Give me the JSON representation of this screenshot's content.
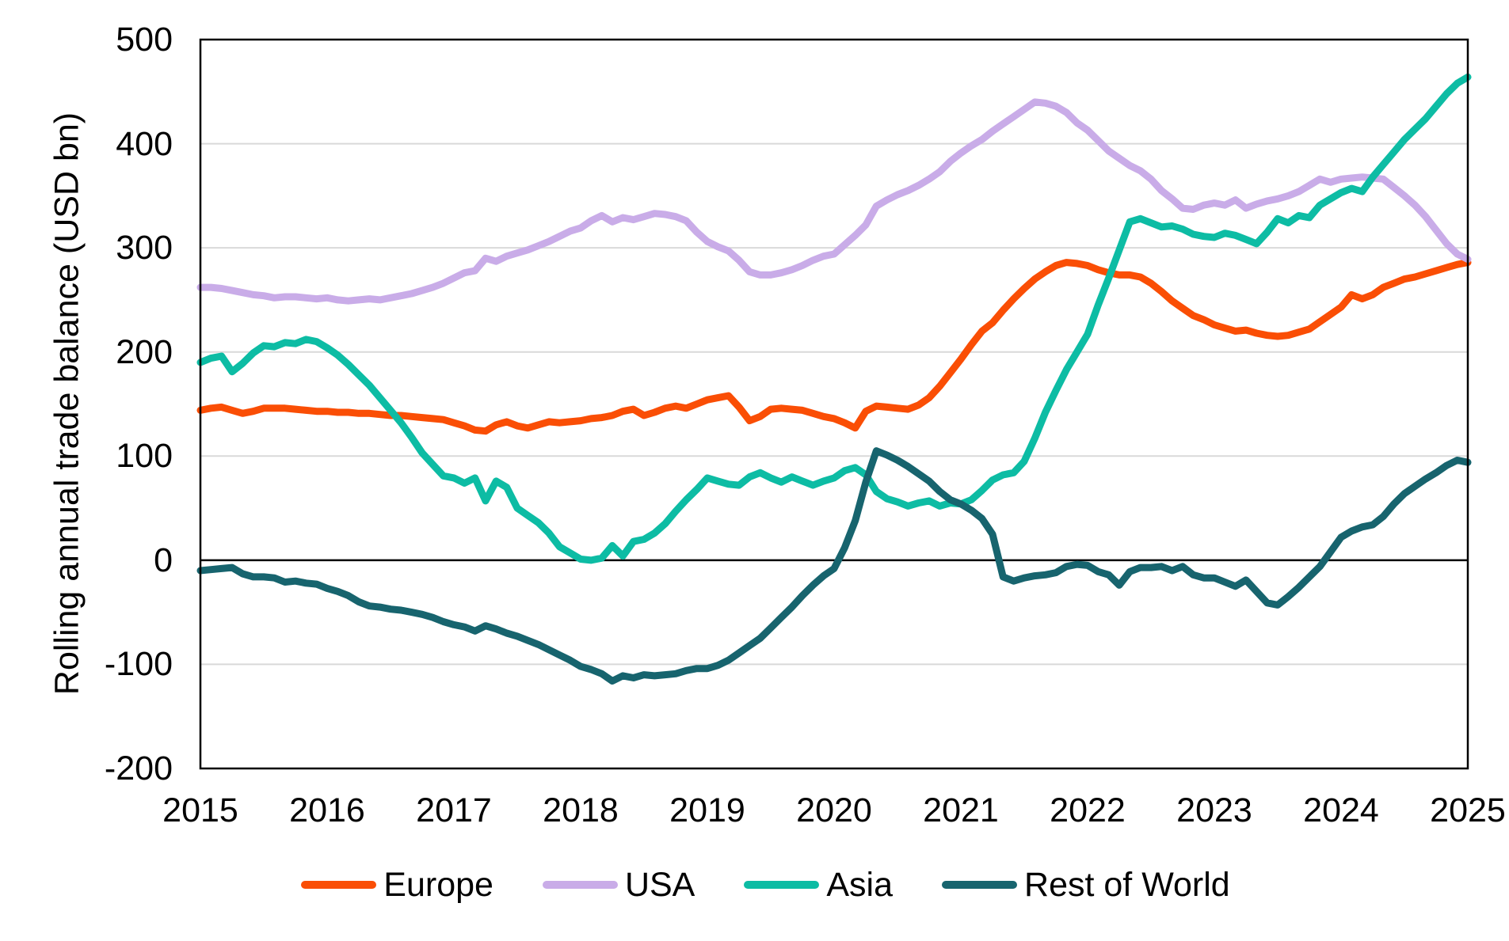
{
  "chart_data": {
    "type": "line",
    "title": "",
    "ylabel": "Rolling annual trade balance (USD bn)",
    "xlabel": "",
    "ylim": [
      -200,
      500
    ],
    "x_start": 2015,
    "x_end": 2025,
    "x_unit": "monthly",
    "grid": "horizontal",
    "legend_position": "bottom",
    "y_ticks": [
      "500",
      "400",
      "300",
      "200",
      "100",
      "0",
      "-100",
      "-200"
    ],
    "y_tick_values": [
      500,
      400,
      300,
      200,
      100,
      0,
      -100,
      -200
    ],
    "gridline_values": [
      400,
      300,
      200,
      100,
      -100
    ],
    "zero_line_value": 0,
    "x_ticks": [
      "2015",
      "2016",
      "2017",
      "2018",
      "2019",
      "2020",
      "2021",
      "2022",
      "2023",
      "2024",
      "2025"
    ],
    "colors": {
      "grid": "#D9D9D9",
      "axis": "#000000",
      "background": "#FFFFFF"
    },
    "series": [
      {
        "name": "Europe",
        "color": "#FA4E05",
        "values": [
          144,
          146,
          147,
          144,
          141,
          143,
          146,
          146,
          146,
          145,
          144,
          143,
          143,
          142,
          142,
          141,
          141,
          140,
          139,
          139,
          138,
          137,
          136,
          135,
          132,
          129,
          125,
          124,
          130,
          133,
          129,
          127,
          130,
          133,
          132,
          133,
          134,
          136,
          137,
          139,
          143,
          145,
          139,
          142,
          146,
          148,
          146,
          150,
          154,
          156,
          158,
          147,
          134,
          138,
          145,
          146,
          145,
          144,
          141,
          138,
          136,
          132,
          127,
          143,
          148,
          147,
          146,
          145,
          149,
          156,
          167,
          180,
          193,
          207,
          220,
          228,
          240,
          251,
          261,
          270,
          277,
          283,
          286,
          285,
          283,
          279,
          276,
          274,
          274,
          272,
          266,
          258,
          249,
          242,
          235,
          231,
          226,
          223,
          220,
          221,
          218,
          216,
          215,
          216,
          219,
          222,
          229,
          236,
          243,
          255,
          251,
          255,
          262,
          266,
          270,
          272,
          275,
          278,
          281,
          284,
          286
        ]
      },
      {
        "name": "USA",
        "color": "#C9ACE8",
        "values": [
          262,
          262,
          261,
          259,
          257,
          255,
          254,
          252,
          253,
          253,
          252,
          251,
          252,
          250,
          249,
          250,
          251,
          250,
          252,
          254,
          256,
          259,
          262,
          266,
          271,
          276,
          278,
          290,
          287,
          292,
          295,
          298,
          302,
          306,
          311,
          316,
          319,
          326,
          331,
          325,
          329,
          327,
          330,
          333,
          332,
          330,
          326,
          315,
          306,
          301,
          297,
          288,
          277,
          274,
          274,
          276,
          279,
          283,
          288,
          292,
          294,
          303,
          312,
          322,
          340,
          346,
          351,
          355,
          360,
          366,
          373,
          383,
          391,
          398,
          404,
          412,
          419,
          426,
          433,
          440,
          439,
          436,
          430,
          420,
          413,
          403,
          393,
          386,
          379,
          374,
          366,
          355,
          347,
          338,
          337,
          341,
          343,
          341,
          346,
          338,
          342,
          345,
          347,
          350,
          354,
          360,
          366,
          363,
          366,
          367,
          368,
          367,
          366,
          358,
          350,
          341,
          330,
          317,
          304,
          294,
          289
        ]
      },
      {
        "name": "Asia",
        "color": "#0DBCA4",
        "values": [
          190,
          194,
          196,
          181,
          189,
          199,
          206,
          205,
          209,
          208,
          212,
          210,
          204,
          197,
          188,
          178,
          168,
          156,
          144,
          132,
          118,
          103,
          92,
          81,
          79,
          74,
          79,
          57,
          76,
          70,
          50,
          43,
          36,
          26,
          13,
          7,
          1,
          0,
          2,
          14,
          4,
          18,
          20,
          26,
          35,
          47,
          58,
          68,
          79,
          76,
          73,
          72,
          80,
          84,
          79,
          75,
          80,
          76,
          72,
          76,
          79,
          86,
          89,
          82,
          66,
          59,
          56,
          52,
          55,
          57,
          52,
          55,
          54,
          58,
          67,
          77,
          82,
          84,
          95,
          117,
          142,
          163,
          183,
          200,
          217,
          245,
          271,
          298,
          325,
          328,
          324,
          320,
          321,
          318,
          313,
          311,
          310,
          314,
          312,
          308,
          304,
          315,
          328,
          324,
          331,
          329,
          341,
          347,
          353,
          357,
          354,
          368,
          380,
          392,
          404,
          414,
          424,
          436,
          448,
          458,
          464
        ]
      },
      {
        "name": "Rest of World",
        "color": "#17646E",
        "values": [
          -10,
          -9,
          -8,
          -7,
          -13,
          -16,
          -16,
          -17,
          -21,
          -20,
          -22,
          -23,
          -27,
          -30,
          -34,
          -40,
          -44,
          -45,
          -47,
          -48,
          -50,
          -52,
          -55,
          -59,
          -62,
          -64,
          -68,
          -63,
          -66,
          -70,
          -73,
          -77,
          -81,
          -86,
          -91,
          -96,
          -102,
          -105,
          -109,
          -116,
          -111,
          -113,
          -110,
          -111,
          -110,
          -109,
          -106,
          -104,
          -104,
          -101,
          -96,
          -89,
          -82,
          -75,
          -65,
          -55,
          -45,
          -34,
          -24,
          -15,
          -8,
          12,
          38,
          75,
          105,
          101,
          96,
          90,
          83,
          76,
          66,
          58,
          54,
          48,
          40,
          25,
          -16,
          -20,
          -17,
          -15,
          -14,
          -12,
          -6,
          -4,
          -5,
          -11,
          -14,
          -24,
          -11,
          -7,
          -7,
          -6,
          -10,
          -6,
          -14,
          -17,
          -17,
          -21,
          -25,
          -19,
          -30,
          -41,
          -43,
          -35,
          -26,
          -16,
          -6,
          8,
          22,
          28,
          32,
          34,
          42,
          54,
          64,
          71,
          78,
          84,
          91,
          96,
          94
        ]
      }
    ]
  }
}
